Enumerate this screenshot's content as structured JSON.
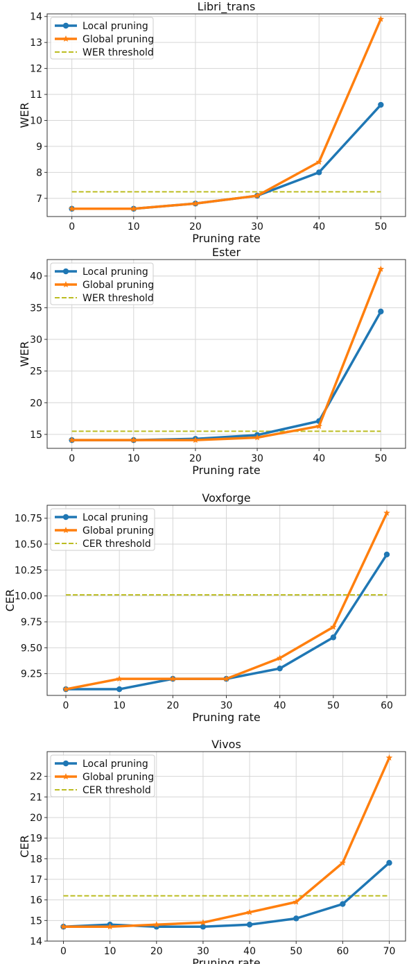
{
  "colors": {
    "local": "#1f77b4",
    "global": "#ff7f0e",
    "threshold": "#bcbd22"
  },
  "chart_data": [
    {
      "type": "line",
      "title": "Libri_trans",
      "xlabel": "Pruning rate",
      "ylabel": "WER",
      "x": [
        0,
        10,
        20,
        30,
        40,
        50
      ],
      "xlim": [
        -4,
        54
      ],
      "ylim": [
        6.3,
        14.1
      ],
      "yticks": [
        7,
        8,
        9,
        10,
        11,
        12,
        13,
        14
      ],
      "ytick_labels": [
        "7",
        "8",
        "9",
        "10",
        "11",
        "12",
        "13",
        "14"
      ],
      "grid": true,
      "legend_position": "top-left",
      "series": [
        {
          "name": "Local pruning",
          "marker": "circle",
          "values": [
            6.6,
            6.6,
            6.8,
            7.1,
            8.0,
            10.6
          ]
        },
        {
          "name": "Global pruning",
          "marker": "star",
          "values": [
            6.6,
            6.6,
            6.8,
            7.1,
            8.4,
            13.9
          ]
        }
      ],
      "threshold": {
        "name": "WER threshold",
        "value": 7.25
      }
    },
    {
      "type": "line",
      "title": "Ester",
      "xlabel": "Pruning rate",
      "ylabel": "WER",
      "x": [
        0,
        10,
        20,
        30,
        40,
        50
      ],
      "xlim": [
        -4,
        54
      ],
      "ylim": [
        12.8,
        42.6
      ],
      "yticks": [
        15,
        20,
        25,
        30,
        35,
        40
      ],
      "ytick_labels": [
        "15",
        "20",
        "25",
        "30",
        "35",
        "40"
      ],
      "grid": true,
      "legend_position": "top-left",
      "series": [
        {
          "name": "Local pruning",
          "marker": "circle",
          "values": [
            14.1,
            14.1,
            14.3,
            14.9,
            17.1,
            34.4
          ]
        },
        {
          "name": "Global pruning",
          "marker": "star",
          "values": [
            14.1,
            14.1,
            14.1,
            14.5,
            16.3,
            41.1
          ]
        }
      ],
      "threshold": {
        "name": "WER threshold",
        "value": 15.5
      }
    },
    {
      "type": "line",
      "title": "Voxforge",
      "xlabel": "Pruning rate",
      "ylabel": "CER",
      "x": [
        0,
        10,
        20,
        30,
        40,
        50,
        60
      ],
      "xlim": [
        -3.5,
        63.5
      ],
      "ylim": [
        9.04,
        10.875
      ],
      "yticks": [
        9.25,
        9.5,
        9.75,
        10.0,
        10.25,
        10.5,
        10.75
      ],
      "ytick_labels": [
        "9.25",
        "9.50",
        "9.75",
        "10.00",
        "10.25",
        "10.50",
        "10.75"
      ],
      "grid": true,
      "legend_position": "top-left",
      "series": [
        {
          "name": "Local pruning",
          "marker": "circle",
          "values": [
            9.1,
            9.1,
            9.2,
            9.2,
            9.3,
            9.6,
            10.4
          ]
        },
        {
          "name": "Global pruning",
          "marker": "star",
          "values": [
            9.1,
            9.2,
            9.2,
            9.2,
            9.4,
            9.7,
            10.8
          ]
        }
      ],
      "threshold": {
        "name": "CER threshold",
        "value": 10.01
      }
    },
    {
      "type": "line",
      "title": "Vivos",
      "xlabel": "Pruning rate",
      "ylabel": "CER",
      "x": [
        0,
        10,
        20,
        30,
        40,
        50,
        60,
        70
      ],
      "xlim": [
        -3.5,
        73.5
      ],
      "ylim": [
        14.0,
        23.2
      ],
      "yticks": [
        14,
        15,
        16,
        17,
        18,
        19,
        20,
        21,
        22
      ],
      "ytick_labels": [
        "14",
        "15",
        "16",
        "17",
        "18",
        "19",
        "20",
        "21",
        "22"
      ],
      "grid": true,
      "legend_position": "top-left",
      "series": [
        {
          "name": "Local pruning",
          "marker": "circle",
          "values": [
            14.7,
            14.8,
            14.7,
            14.7,
            14.8,
            15.1,
            15.8,
            17.8
          ]
        },
        {
          "name": "Global pruning",
          "marker": "star",
          "values": [
            14.7,
            14.7,
            14.8,
            14.9,
            15.4,
            15.9,
            17.8,
            22.9
          ]
        }
      ],
      "threshold": {
        "name": "CER threshold",
        "value": 16.2
      }
    }
  ]
}
